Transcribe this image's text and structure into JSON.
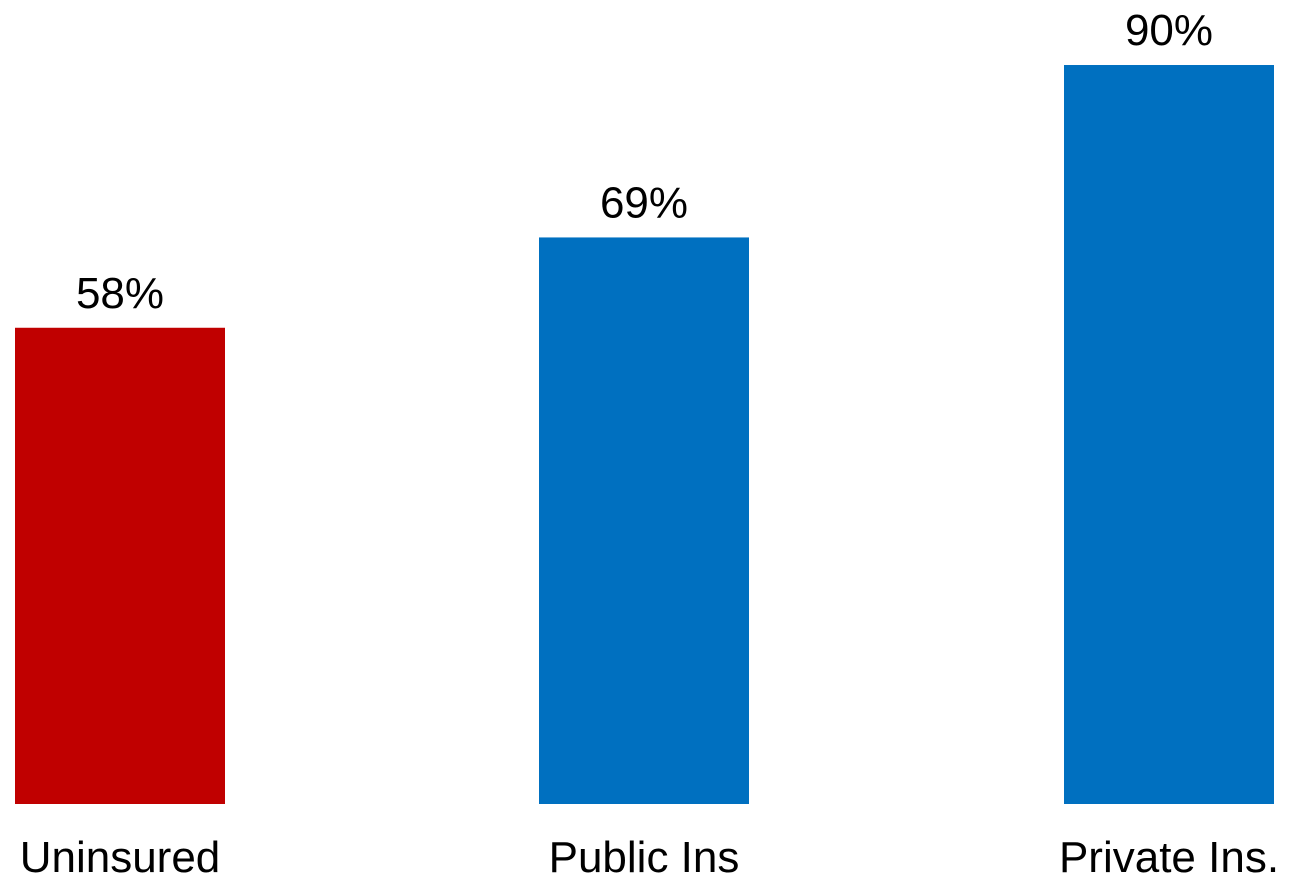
{
  "chart_data": {
    "type": "bar",
    "categories": [
      "Uninsured",
      "Public Ins",
      "Private Ins."
    ],
    "values": [
      58,
      69,
      90
    ],
    "value_labels": [
      "58%",
      "69%",
      "90%"
    ],
    "colors": [
      "#C00000",
      "#0070C0",
      "#0070C0"
    ],
    "title": "",
    "xlabel": "",
    "ylabel": "",
    "ylim": [
      0,
      100
    ],
    "grid": false,
    "legend": "none"
  }
}
